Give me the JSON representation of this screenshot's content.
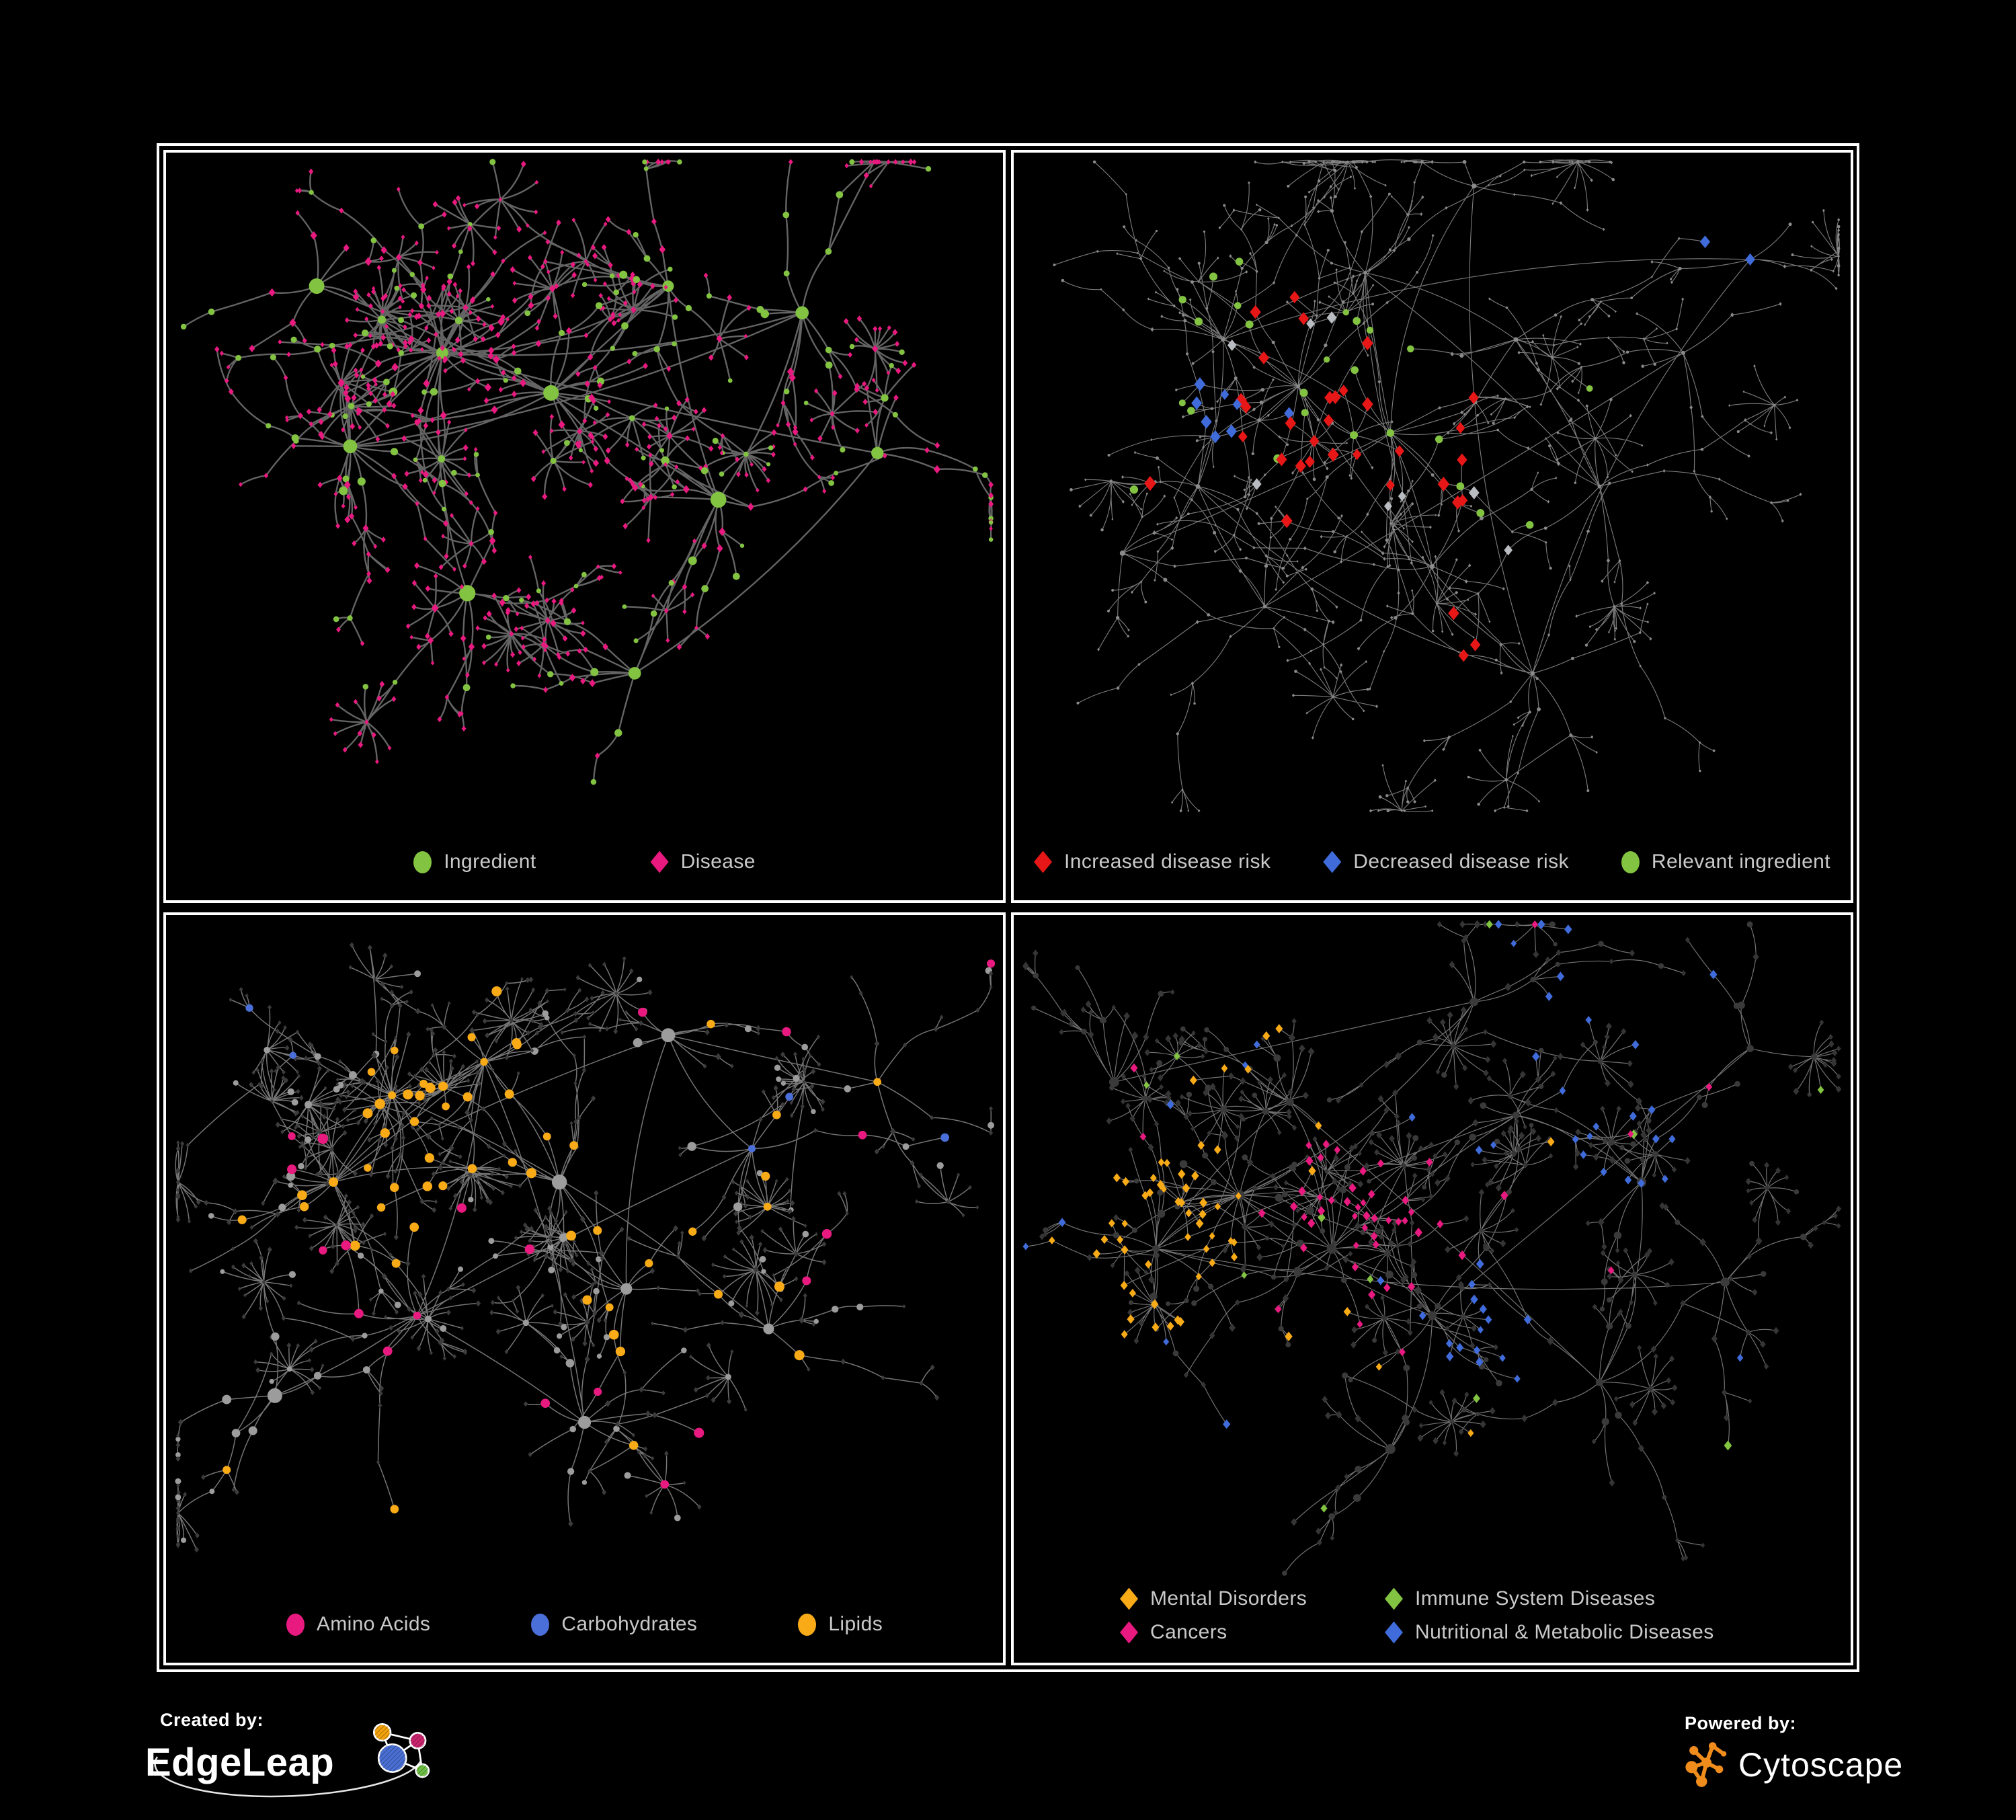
{
  "page": {
    "background": "#000000",
    "frame_color": "#FFFFFF"
  },
  "panels": [
    {
      "name": "ingredient-disease-network",
      "legend": {
        "layout": "row",
        "gap": 170,
        "items": [
          {
            "label": "Ingredient",
            "shape": "circle",
            "color": "#82C341"
          },
          {
            "label": "Disease",
            "shape": "diamond",
            "color": "#E8197F"
          }
        ]
      },
      "net": {
        "seed": 7,
        "edge": {
          "color": "#6F6F6F",
          "width": 2.4,
          "opacity": 0.9
        },
        "circle_prob": 0.34,
        "leaf_circle_prob": 0.13,
        "step": 74,
        "steps": 4,
        "burst": 0.3,
        "burst_min": 6,
        "burst_max": 16,
        "web": 140,
        "web_dist": 170,
        "base": {
          "circle": {
            "color": "#82C341",
            "r": [
              10.5,
              5.6,
              4.6,
              3.9
            ]
          },
          "diamond": {
            "color": "#E8197F",
            "r": [
              7.5,
              5.0,
              4.3,
              3.7
            ]
          }
        },
        "clusters": [
          [
            0.33,
            0.3,
            24
          ],
          [
            0.22,
            0.44,
            16
          ],
          [
            0.46,
            0.36,
            15
          ],
          [
            0.6,
            0.2,
            9
          ],
          [
            0.76,
            0.24,
            8
          ],
          [
            0.66,
            0.52,
            9
          ],
          [
            0.36,
            0.66,
            9
          ],
          [
            0.56,
            0.78,
            7
          ],
          [
            0.18,
            0.2,
            6
          ],
          [
            0.85,
            0.45,
            5
          ]
        ],
        "highlights": []
      }
    },
    {
      "name": "disease-risk-network",
      "legend": {
        "layout": "row",
        "gap": 78,
        "items": [
          {
            "label": "Increased disease risk",
            "shape": "diamond",
            "color": "#E81717"
          },
          {
            "label": "Decreased disease risk",
            "shape": "diamond",
            "color": "#3F6BDB"
          },
          {
            "label": "Relevant ingredient",
            "shape": "circle",
            "color": "#82C341"
          }
        ]
      },
      "net": {
        "seed": 13,
        "edge": {
          "color": "#989898",
          "width": 1.15,
          "opacity": 0.8
        },
        "circle_prob": 0.32,
        "leaf_circle_prob": 0.2,
        "step": 84,
        "steps": 5,
        "burst": 0.2,
        "burst_min": 6,
        "burst_max": 12,
        "web": 50,
        "web_dist": 200,
        "base": {
          "circle": {
            "color": "#8A8A8A",
            "r": [
              3.4,
              2.5,
              2.2,
              2.0
            ]
          },
          "diamond": {
            "color": "#8A8A8A",
            "r": [
              3.2,
              2.5,
              2.2,
              2.0
            ]
          }
        },
        "clusters": [
          [
            0.34,
            0.35,
            16
          ],
          [
            0.25,
            0.28,
            10
          ],
          [
            0.45,
            0.42,
            12
          ],
          [
            0.22,
            0.5,
            8
          ],
          [
            0.42,
            0.18,
            8
          ],
          [
            0.6,
            0.28,
            8
          ],
          [
            0.7,
            0.5,
            8
          ],
          [
            0.5,
            0.62,
            8
          ],
          [
            0.3,
            0.68,
            7
          ],
          [
            0.62,
            0.78,
            7
          ],
          [
            0.8,
            0.3,
            6
          ],
          [
            0.88,
            0.16,
            4
          ],
          [
            0.13,
            0.6,
            5
          ],
          [
            0.55,
            0.05,
            4
          ]
        ],
        "highlights": [
          {
            "name": "increased-risk",
            "color": "#E81717",
            "shape": "diamond",
            "size": 8.5,
            "anchors": [
              [
                0.345,
                0.36,
                0.1,
                13
              ],
              [
                0.44,
                0.44,
                0.09,
                6
              ],
              [
                0.52,
                0.47,
                0.06,
                3
              ],
              [
                0.56,
                0.39,
                0.05,
                2
              ],
              [
                0.33,
                0.52,
                0.06,
                3
              ],
              [
                0.5,
                0.72,
                0.05,
                2
              ],
              [
                0.58,
                0.76,
                0.04,
                1
              ],
              [
                0.3,
                0.24,
                0.05,
                2
              ],
              [
                0.16,
                0.46,
                0.03,
                1
              ]
            ]
          },
          {
            "name": "decreased-risk",
            "color": "#3F6BDB",
            "shape": "diamond",
            "size": 8.0,
            "anchors": [
              [
                0.225,
                0.42,
                0.06,
                6
              ],
              [
                0.88,
                0.155,
                0.06,
                2
              ],
              [
                0.3,
                0.36,
                0.04,
                2
              ]
            ]
          },
          {
            "name": "neutral-diamond",
            "color": "#B9BCC0",
            "shape": "diamond",
            "size": 7.5,
            "anchors": [
              [
                0.4,
                0.42,
                0.16,
                5
              ],
              [
                0.55,
                0.57,
                0.08,
                2
              ],
              [
                0.28,
                0.33,
                0.05,
                1
              ]
            ]
          },
          {
            "name": "relevant-ingredient",
            "color": "#82C341",
            "shape": "circle",
            "size": 5.5,
            "anchors": [
              [
                0.3,
                0.33,
                0.14,
                11
              ],
              [
                0.22,
                0.28,
                0.08,
                4
              ],
              [
                0.42,
                0.3,
                0.06,
                3
              ],
              [
                0.55,
                0.52,
                0.08,
                3
              ],
              [
                0.13,
                0.345,
                0.04,
                1
              ],
              [
                0.67,
                0.345,
                0.04,
                1
              ],
              [
                0.47,
                0.42,
                0.05,
                2
              ],
              [
                0.13,
                0.486,
                0.03,
                1
              ]
            ]
          }
        ]
      }
    },
    {
      "name": "nutrient-class-network",
      "legend": {
        "layout": "row",
        "gap": 150,
        "items": [
          {
            "label": "Amino Acids",
            "shape": "circle",
            "color": "#E8197F"
          },
          {
            "label": "Carbohydrates",
            "shape": "circle",
            "color": "#4A6FD8"
          },
          {
            "label": "Lipids",
            "shape": "circle",
            "color": "#F8AB17"
          }
        ]
      },
      "net": {
        "seed": 21,
        "edge": {
          "color": "#8A8A8A",
          "width": 1.5,
          "opacity": 0.85
        },
        "circle_prob": 0.38,
        "leaf_circle_prob": 0.12,
        "step": 72,
        "steps": 4,
        "burst": 0.3,
        "burst_min": 7,
        "burst_max": 18,
        "web": 170,
        "web_dist": 160,
        "base": {
          "circle": {
            "color": "#9C9C9C",
            "r": [
              10.0,
              6.2,
              5.0,
              4.4
            ]
          },
          "diamond": {
            "color": "#3C3C3C",
            "r": [
              4.6,
              4.0,
              3.6,
              3.3
            ]
          }
        },
        "clusters": [
          [
            0.27,
            0.27,
            20
          ],
          [
            0.2,
            0.4,
            14
          ],
          [
            0.38,
            0.22,
            14
          ],
          [
            0.47,
            0.4,
            12
          ],
          [
            0.6,
            0.18,
            8
          ],
          [
            0.7,
            0.35,
            8
          ],
          [
            0.55,
            0.56,
            10
          ],
          [
            0.3,
            0.6,
            9
          ],
          [
            0.5,
            0.76,
            8
          ],
          [
            0.72,
            0.62,
            7
          ],
          [
            0.13,
            0.72,
            5
          ],
          [
            0.85,
            0.25,
            5
          ]
        ],
        "highlights": [
          {
            "name": "lipids",
            "color": "#F8AB17",
            "shape": "circle",
            "only": "circle",
            "size": 6.8,
            "anchors": [
              [
                0.345,
                0.205,
                0.085,
                24
              ],
              [
                0.3,
                0.32,
                0.1,
                12
              ],
              [
                0.25,
                0.42,
                0.09,
                6
              ],
              [
                0.55,
                0.55,
                0.09,
                7
              ],
              [
                0.44,
                0.4,
                0.07,
                4
              ],
              [
                0.72,
                0.36,
                0.07,
                3
              ],
              [
                0.5,
                0.45,
                0.55,
                12
              ]
            ]
          },
          {
            "name": "carbohydrates",
            "color": "#4A6FD8",
            "shape": "circle",
            "only": "circle",
            "size": 6.2,
            "anchors": [
              [
                0.385,
                0.2,
                0.055,
                8
              ],
              [
                0.33,
                0.27,
                0.04,
                2
              ],
              [
                0.5,
                0.45,
                0.5,
                4
              ],
              [
                0.1,
                0.13,
                0.03,
                1
              ]
            ]
          },
          {
            "name": "amino-acids",
            "color": "#E8197F",
            "shape": "circle",
            "only": "circle",
            "size": 6.8,
            "anchors": [
              [
                0.5,
                0.52,
                0.55,
                18
              ],
              [
                0.12,
                0.3,
                0.05,
                1
              ],
              [
                0.95,
                0.05,
                0.04,
                1
              ],
              [
                0.47,
                0.03,
                0.04,
                1
              ],
              [
                0.9,
                0.14,
                0.04,
                1
              ]
            ]
          }
        ]
      }
    },
    {
      "name": "disease-class-network",
      "legend": {
        "layout": "grid",
        "gap": 0,
        "items": [
          {
            "label": "Mental Disorders",
            "shape": "diamond",
            "color": "#F8AB17"
          },
          {
            "label": "Immune System Diseases",
            "shape": "diamond",
            "color": "#82C341"
          },
          {
            "label": "Cancers",
            "shape": "diamond",
            "color": "#E8197F"
          },
          {
            "label": "Nutritional & Metabolic Diseases",
            "shape": "diamond",
            "color": "#3F6BDB"
          }
        ]
      },
      "net": {
        "seed": 5,
        "edge": {
          "color": "#9A9A9A",
          "width": 1.2,
          "opacity": 0.75
        },
        "circle_prob": 0.36,
        "leaf_circle_prob": 0.1,
        "step": 72,
        "steps": 4,
        "burst": 0.3,
        "burst_min": 7,
        "burst_max": 16,
        "web": 150,
        "web_dist": 170,
        "base": {
          "circle": {
            "color": "#3A3A3A",
            "r": [
              6.5,
              5.0,
              4.3,
              3.9
            ]
          },
          "diamond": {
            "color": "#353535",
            "r": [
              5.5,
              5.0,
              4.6,
              4.2
            ]
          }
        },
        "clusters": [
          [
            0.27,
            0.42,
            18
          ],
          [
            0.17,
            0.5,
            13
          ],
          [
            0.38,
            0.5,
            13
          ],
          [
            0.33,
            0.28,
            10
          ],
          [
            0.5,
            0.6,
            10
          ],
          [
            0.6,
            0.3,
            9
          ],
          [
            0.75,
            0.4,
            8
          ],
          [
            0.55,
            0.13,
            7
          ],
          [
            0.7,
            0.7,
            8
          ],
          [
            0.45,
            0.8,
            7
          ],
          [
            0.85,
            0.55,
            5
          ],
          [
            0.12,
            0.25,
            6
          ],
          [
            0.88,
            0.2,
            4
          ]
        ],
        "highlights": [
          {
            "name": "mental-disorders",
            "color": "#F8AB17",
            "shape": "diamond",
            "only": "diamond",
            "size": 5.6,
            "anchors": [
              [
                0.155,
                0.5,
                0.11,
                38
              ],
              [
                0.21,
                0.42,
                0.07,
                10
              ],
              [
                0.28,
                0.18,
                0.05,
                4
              ],
              [
                0.5,
                0.5,
                0.6,
                8
              ]
            ]
          },
          {
            "name": "cancers",
            "color": "#E8197F",
            "shape": "diamond",
            "only": "diamond",
            "size": 5.6,
            "anchors": [
              [
                0.42,
                0.53,
                0.12,
                28
              ],
              [
                0.35,
                0.42,
                0.08,
                10
              ],
              [
                0.48,
                0.42,
                0.06,
                6
              ],
              [
                0.87,
                0.3,
                0.06,
                5
              ],
              [
                0.5,
                0.5,
                0.6,
                6
              ]
            ]
          },
          {
            "name": "nutritional-metabolic",
            "color": "#3F6BDB",
            "shape": "diamond",
            "only": "diamond",
            "size": 5.6,
            "anchors": [
              [
                0.56,
                0.62,
                0.09,
                15
              ],
              [
                0.74,
                0.3,
                0.1,
                13
              ],
              [
                0.63,
                0.1,
                0.09,
                8
              ],
              [
                0.82,
                0.16,
                0.06,
                5
              ],
              [
                0.28,
                0.78,
                0.06,
                4
              ],
              [
                0.1,
                0.68,
                0.05,
                3
              ],
              [
                0.5,
                0.5,
                0.6,
                12
              ]
            ]
          },
          {
            "name": "immune-system",
            "color": "#82C341",
            "shape": "diamond",
            "only": "diamond",
            "size": 5.6,
            "anchors": [
              [
                0.5,
                0.45,
                0.6,
                11
              ]
            ]
          }
        ]
      }
    }
  ],
  "footer": {
    "created_by_label": "Created by:",
    "edgeleap_brand": "EdgeLeap",
    "powered_by_label": "Powered by:",
    "cytoscape_brand": "Cytoscape",
    "edgeleap_node_colors": {
      "blue": "#4A6FD4",
      "orange": "#F2A20D",
      "magenta": "#C9256E",
      "green": "#6DBE45"
    },
    "cytoscape_orange": "#F08C1C"
  },
  "chart_data": [
    {
      "type": "network",
      "panel": "top-left",
      "legend": [
        "Ingredient",
        "Disease"
      ],
      "node_shapes": {
        "Ingredient": "green circle",
        "Disease": "pink diamond"
      }
    },
    {
      "type": "network",
      "panel": "top-right",
      "legend": [
        "Increased disease risk",
        "Decreased disease risk",
        "Relevant ingredient"
      ],
      "node_shapes": {
        "Increased disease risk": "red diamond",
        "Decreased disease risk": "blue diamond",
        "Relevant ingredient": "green circle"
      }
    },
    {
      "type": "network",
      "panel": "bottom-left",
      "legend": [
        "Amino Acids",
        "Carbohydrates",
        "Lipids"
      ],
      "node_shapes": {
        "Amino Acids": "pink circle",
        "Carbohydrates": "blue circle",
        "Lipids": "orange circle"
      }
    },
    {
      "type": "network",
      "panel": "bottom-right",
      "legend": [
        "Mental Disorders",
        "Immune System Diseases",
        "Cancers",
        "Nutritional & Metabolic Diseases"
      ],
      "node_shapes": {
        "all": "colored diamonds"
      }
    }
  ]
}
